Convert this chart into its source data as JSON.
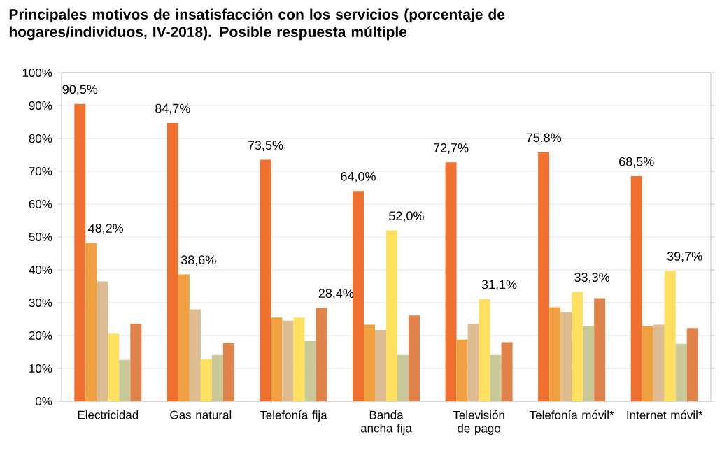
{
  "chart_data": {
    "type": "bar",
    "title": "Principales motivos de insatisfacción con los servicios (porcentaje de hogares/individuos, IV-2018). Posible respuesta múltiple",
    "categories": [
      "Electricidad",
      "Gas natural",
      "Telefonía fija",
      "Banda ancha fija",
      "Televisión de pago",
      "Telefonía móvil*",
      "Internet móvil*"
    ],
    "series": [
      {
        "color": "#f07030",
        "values": [
          90.5,
          84.7,
          73.5,
          64.0,
          72.7,
          75.8,
          68.5
        ],
        "value_labels": [
          "90,5%",
          "84,7%",
          "73,5%",
          "64,0%",
          "72,7%",
          "75,8%",
          "68,5%"
        ]
      },
      {
        "color": "#f0a040",
        "values": [
          48.2,
          38.6,
          25.5,
          23.3,
          18.8,
          28.6,
          22.9
        ],
        "value_labels": [
          "48,2%",
          "38,6%",
          null,
          null,
          null,
          null,
          null
        ]
      },
      {
        "color": "#dcbc90",
        "values": [
          36.5,
          28.0,
          24.5,
          21.7,
          23.6,
          27.1,
          23.3
        ]
      },
      {
        "color": "#ffe060",
        "values": [
          20.6,
          12.8,
          25.5,
          52.0,
          31.1,
          33.3,
          39.7
        ],
        "value_labels": [
          null,
          null,
          null,
          "52,0%",
          "31,1%",
          "33,3%",
          "39,7%"
        ]
      },
      {
        "color": "#c8c898",
        "values": [
          12.6,
          14.1,
          18.3,
          14.1,
          14.1,
          22.9,
          17.5
        ]
      },
      {
        "color": "#e0844c",
        "values": [
          23.6,
          17.7,
          28.4,
          26.1,
          18.0,
          31.4,
          22.3
        ],
        "value_labels": [
          null,
          null,
          "28,4%",
          null,
          null,
          null,
          null
        ]
      }
    ],
    "ylim": [
      0,
      100
    ],
    "yticks": [
      {
        "value": 0,
        "label": "0%"
      },
      {
        "value": 10,
        "label": "10%"
      },
      {
        "value": 20,
        "label": "20%"
      },
      {
        "value": 30,
        "label": "30%"
      },
      {
        "value": 40,
        "label": "40%"
      },
      {
        "value": 50,
        "label": "50%"
      },
      {
        "value": 60,
        "label": "60%"
      },
      {
        "value": 70,
        "label": "70%"
      },
      {
        "value": 80,
        "label": "80%"
      },
      {
        "value": 90,
        "label": "90%"
      },
      {
        "value": 100,
        "label": "100%"
      }
    ],
    "grid": "y"
  }
}
